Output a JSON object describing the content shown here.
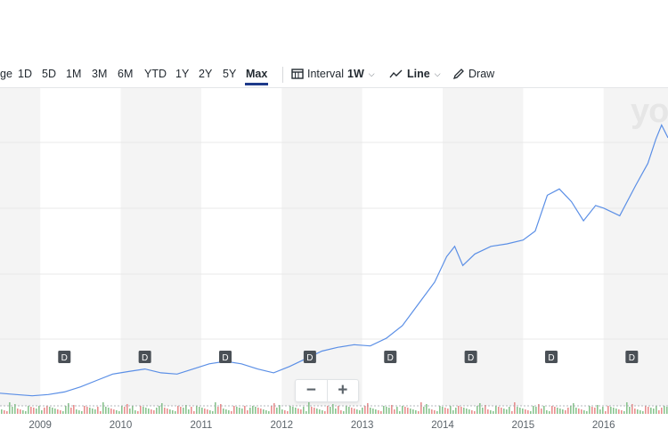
{
  "toolbar": {
    "ranges": [
      {
        "label": "ge"
      },
      {
        "label": "1D"
      },
      {
        "label": "5D"
      },
      {
        "label": "1M"
      },
      {
        "label": "3M"
      },
      {
        "label": "6M"
      },
      {
        "label": "YTD"
      },
      {
        "label": "1Y"
      },
      {
        "label": "2Y"
      },
      {
        "label": "5Y"
      },
      {
        "label": "Max"
      }
    ],
    "active_range": "Max",
    "interval_label": "Interval",
    "interval_value": "1W",
    "line_label": "Line",
    "draw_label": "Draw"
  },
  "watermark": "yo",
  "zoom": {
    "minus": "−",
    "plus": "+"
  },
  "colors": {
    "line": "#5b8fe6",
    "shade": "#f4f4f4",
    "active": "#1e3a8a",
    "vol_up": "#8ac48f",
    "vol_down": "#e88f8f"
  },
  "chart_data": {
    "type": "line",
    "x_tick_labels": [
      "2009",
      "2010",
      "2011",
      "2012",
      "2013",
      "2014",
      "2015",
      "2016"
    ],
    "xlim": [
      2008.5,
      2016.8
    ],
    "dividend_marker": "D",
    "dividends": [
      2009.3,
      2010.3,
      2011.3,
      2012.35,
      2013.35,
      2014.35,
      2015.35,
      2016.35
    ],
    "series": [
      {
        "x": [
          2008.5,
          2008.7,
          2008.9,
          2009.1,
          2009.3,
          2009.5,
          2009.7,
          2009.9,
          2010.1,
          2010.3,
          2010.5,
          2010.7,
          2010.9,
          2011.1,
          2011.3,
          2011.5,
          2011.7,
          2011.9,
          2012.1,
          2012.3,
          2012.5,
          2012.7,
          2012.9,
          2013.1,
          2013.3,
          2013.5,
          2013.7,
          2013.9,
          2014.05,
          2014.15,
          2014.25,
          2014.4,
          2014.6,
          2014.8,
          2015.0,
          2015.15,
          2015.3,
          2015.45,
          2015.6,
          2015.75,
          2015.9,
          2016.0,
          2016.2,
          2016.4,
          2016.55,
          2016.65,
          2016.72,
          2016.8
        ],
        "y": [
          0.05,
          0.04,
          0.03,
          0.04,
          0.06,
          0.1,
          0.15,
          0.2,
          0.22,
          0.24,
          0.21,
          0.2,
          0.24,
          0.28,
          0.3,
          0.28,
          0.24,
          0.21,
          0.26,
          0.32,
          0.38,
          0.41,
          0.43,
          0.42,
          0.48,
          0.58,
          0.75,
          0.92,
          1.12,
          1.2,
          1.05,
          1.14,
          1.2,
          1.22,
          1.25,
          1.32,
          1.6,
          1.65,
          1.55,
          1.4,
          1.52,
          1.5,
          1.44,
          1.68,
          1.85,
          2.04,
          2.15,
          2.05
        ]
      }
    ]
  }
}
